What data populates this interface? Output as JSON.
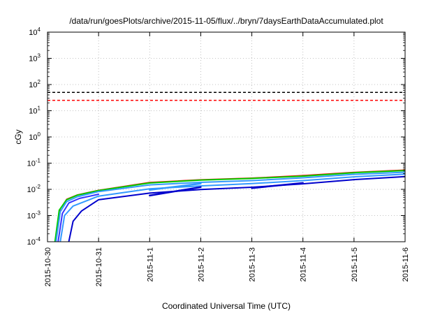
{
  "chart_data": {
    "type": "line",
    "title": "/data/run/goesPlots/archive/2015-11-05/flux/../bryn/7daysEarthDataAccumulated.plot",
    "xlabel": "Coordinated Universal Time (UTC)",
    "ylabel": "cGy",
    "x_scale": "time",
    "y_scale": "log",
    "xlim": [
      "2015-10-30",
      "2015-11-06"
    ],
    "ylim": [
      0.0001,
      10000
    ],
    "x_ticks": [
      "2015-10-30",
      "2015-10-31",
      "2015-11-1",
      "2015-11-2",
      "2015-11-3",
      "2015-11-4",
      "2015-11-5",
      "2015-11-6"
    ],
    "y_ticks": [
      {
        "base": "10",
        "exp": "-4",
        "value": 0.0001
      },
      {
        "base": "10",
        "exp": "-3",
        "value": 0.001
      },
      {
        "base": "10",
        "exp": "-2",
        "value": 0.01
      },
      {
        "base": "10",
        "exp": "-1",
        "value": 0.1
      },
      {
        "base": "10",
        "exp": "0",
        "value": 1
      },
      {
        "base": "10",
        "exp": "1",
        "value": 10
      },
      {
        "base": "10",
        "exp": "2",
        "value": 100
      },
      {
        "base": "10",
        "exp": "3",
        "value": 1000
      },
      {
        "base": "10",
        "exp": "4",
        "value": 10000
      }
    ],
    "grid": true,
    "reference_lines": [
      {
        "y": 50,
        "color": "#000000",
        "style": "dashed"
      },
      {
        "y": 25,
        "color": "#ff0000",
        "style": "dashed"
      }
    ],
    "series": [
      {
        "color": "#ff0000",
        "width": 1.5,
        "points": [
          [
            "2015-10-30 04:00",
            0.0001
          ],
          [
            "2015-10-30 06:00",
            0.0018
          ],
          [
            "2015-10-30 09:00",
            0.0042
          ],
          [
            "2015-10-30 14:00",
            0.0062
          ],
          [
            "2015-10-31 00:00",
            0.0093
          ],
          [
            "2015-11-01 00:00",
            0.0185
          ],
          [
            "2015-11-02 00:00",
            0.0235
          ],
          [
            "2015-11-03 00:00",
            0.027
          ],
          [
            "2015-11-04 00:00",
            0.034
          ],
          [
            "2015-11-05 00:00",
            0.045
          ],
          [
            "2015-11-06 00:00",
            0.055
          ]
        ]
      },
      {
        "color": "#00cc00",
        "width": 2,
        "points": [
          [
            "2015-10-30 03:30",
            0.0001
          ],
          [
            "2015-10-30 05:30",
            0.0016
          ],
          [
            "2015-10-30 09:00",
            0.004
          ],
          [
            "2015-10-30 14:00",
            0.006
          ],
          [
            "2015-10-31 00:00",
            0.009
          ],
          [
            "2015-11-01 00:00",
            0.0175
          ],
          [
            "2015-11-02 00:00",
            0.0225
          ],
          [
            "2015-11-03 00:00",
            0.026
          ],
          [
            "2015-11-04 00:00",
            0.032
          ],
          [
            "2015-11-05 00:00",
            0.043
          ],
          [
            "2015-11-06 00:00",
            0.052
          ]
        ]
      },
      {
        "color": "#3399ff",
        "width": 2,
        "points": [
          [
            "2015-10-30 04:00",
            0.0001
          ],
          [
            "2015-10-30 06:00",
            0.0014
          ],
          [
            "2015-10-30 09:00",
            0.0034
          ],
          [
            "2015-10-30 14:00",
            0.0052
          ],
          [
            "2015-10-31 00:00",
            0.0082
          ],
          [
            "2015-11-01 00:00",
            0.0148
          ],
          [
            "2015-11-02 00:00",
            0.0185
          ],
          [
            "2015-11-03 00:00",
            0.0215
          ],
          [
            "2015-11-04 00:00",
            0.0275
          ],
          [
            "2015-11-05 00:00",
            0.0375
          ],
          [
            "2015-11-06 00:00",
            0.045
          ]
        ]
      },
      {
        "color": "#3333ff",
        "width": 2,
        "points": [
          [
            "2015-10-30 05:00",
            0.0001
          ],
          [
            "2015-10-30 07:00",
            0.0012
          ],
          [
            "2015-10-30 10:00",
            0.003
          ],
          [
            "2015-10-30 15:00",
            0.0045
          ],
          [
            "2015-10-31 00:00",
            0.0065
          ]
        ]
      },
      {
        "color": "#3399ff",
        "width": 2,
        "points": [
          [
            "2015-10-30 06:00",
            0.0001
          ],
          [
            "2015-10-30 08:00",
            0.001
          ],
          [
            "2015-10-30 12:00",
            0.0023
          ],
          [
            "2015-10-31 00:00",
            0.0055
          ],
          [
            "2015-11-01 00:00",
            0.0105
          ],
          [
            "2015-11-02 00:00",
            0.0135
          ],
          [
            "2015-11-03 00:00",
            0.0165
          ],
          [
            "2015-11-04 00:00",
            0.0215
          ],
          [
            "2015-11-05 00:00",
            0.03
          ],
          [
            "2015-11-06 00:00",
            0.038
          ]
        ]
      },
      {
        "color": "#0000cc",
        "width": 2,
        "points": [
          [
            "2015-10-30 10:00",
            0.0001
          ],
          [
            "2015-10-30 12:00",
            0.0006
          ],
          [
            "2015-10-30 16:00",
            0.0015
          ],
          [
            "2015-10-31 00:00",
            0.004
          ],
          [
            "2015-11-01 00:00",
            0.0072
          ],
          [
            "2015-11-02 00:00",
            0.0098
          ],
          [
            "2015-11-03 00:00",
            0.012
          ],
          [
            "2015-11-04 00:00",
            0.0162
          ],
          [
            "2015-11-05 00:00",
            0.0235
          ],
          [
            "2015-11-06 00:00",
            0.0305
          ]
        ]
      },
      {
        "color": "#0000cc",
        "width": 2.5,
        "points": [
          [
            "2015-11-01 00:00",
            0.0058
          ],
          [
            "2015-11-02 00:00",
            0.0122
          ]
        ]
      },
      {
        "color": "#0000cc",
        "width": 2.5,
        "points": [
          [
            "2015-11-03 00:00",
            0.0112
          ],
          [
            "2015-11-04 00:00",
            0.0175
          ]
        ]
      },
      {
        "color": "#3399ff",
        "width": 2.5,
        "points": [
          [
            "2015-11-01 00:00",
            0.0095
          ],
          [
            "2015-11-02 00:00",
            0.0165
          ]
        ]
      }
    ]
  }
}
